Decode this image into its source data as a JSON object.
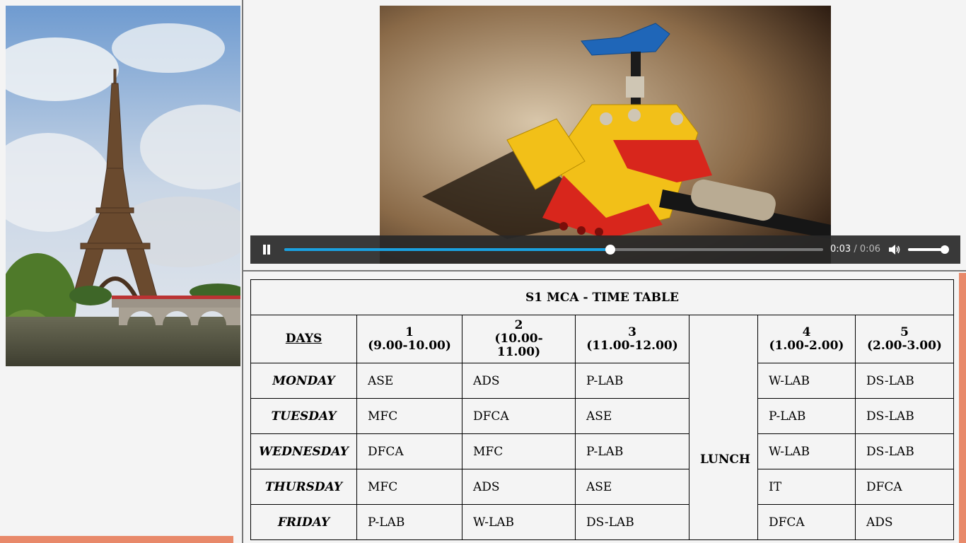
{
  "video": {
    "play_state": "playing",
    "current_time": "0:03",
    "separator": "/",
    "duration": "0:06",
    "progress_fraction": 0.605,
    "volume_fraction": 1.0,
    "accent_color": "#1aa1e0"
  },
  "accent_bar_color": "#e8896a",
  "timetable": {
    "title": "S1 MCA - TIME TABLE",
    "days_header": "DAYS",
    "periods": [
      {
        "number": "1",
        "time": "(9.00-10.00)"
      },
      {
        "number": "2",
        "time": "(10.00-11.00)"
      },
      {
        "number": "3",
        "time": "(11.00-12.00)"
      },
      {
        "number": "4",
        "time": "(1.00-2.00)"
      },
      {
        "number": "5",
        "time": "(2.00-3.00)"
      }
    ],
    "lunch_label": "LUNCH",
    "rows": [
      {
        "day": "MONDAY",
        "subjects": [
          "ASE",
          "ADS",
          "P-LAB",
          "W-LAB",
          "DS-LAB"
        ]
      },
      {
        "day": "TUESDAY",
        "subjects": [
          "MFC",
          "DFCA",
          "ASE",
          "P-LAB",
          "DS-LAB"
        ]
      },
      {
        "day": "WEDNESDAY",
        "subjects": [
          "DFCA",
          "MFC",
          "P-LAB",
          "W-LAB",
          "DS-LAB"
        ]
      },
      {
        "day": "THURSDAY",
        "subjects": [
          "MFC",
          "ADS",
          "ASE",
          "IT",
          "DFCA"
        ]
      },
      {
        "day": "FRIDAY",
        "subjects": [
          "P-LAB",
          "W-LAB",
          "DS-LAB",
          "DFCA",
          "ADS"
        ]
      }
    ]
  }
}
